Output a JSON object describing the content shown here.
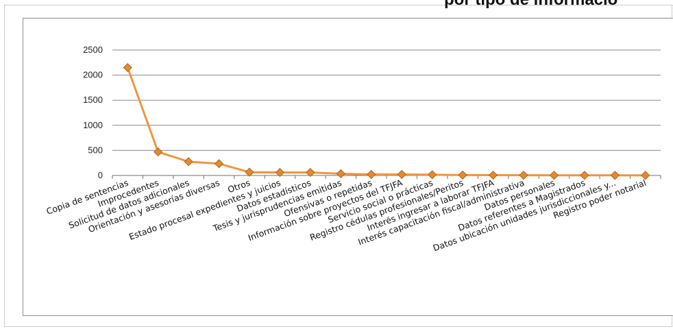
{
  "header": {
    "title_fragment": "por tipo de informació"
  },
  "chart_data": {
    "type": "line",
    "categories": [
      "Copia de sentencias",
      "Improcedentes",
      "Solicitud de datos adicionales",
      "Orientación y asesorías diversas",
      "Otros",
      "Estado procesal expedientes y juicios",
      "Datos estadísticos",
      "Tesis y jurisprudencias emitidas",
      "Ofensivas o repetidas",
      "Información sobre proyectos del TFJFA",
      "Servicio social o prácticas",
      "Registro cédulas profesionales/Peritos",
      "Interés ingresar a laborar TFJFA",
      "Interés capacitación fiscal/administrativa",
      "Datos personales",
      "Datos referentes a Magistrados",
      "Datos ubicación unidades jurisdiccionales y...",
      "Registro poder notarial"
    ],
    "values": [
      2150,
      470,
      275,
      235,
      65,
      60,
      60,
      35,
      20,
      20,
      15,
      8,
      6,
      5,
      4,
      3,
      3,
      2
    ],
    "ylim": [
      0,
      2500
    ],
    "yticks": [
      0,
      500,
      1000,
      1500,
      2000,
      2500
    ],
    "grid": true,
    "colors": {
      "line": "#f0953f",
      "marker": "#e58a2c",
      "marker_edge": "#9c5a14",
      "grid": "#8a8a8a"
    }
  }
}
